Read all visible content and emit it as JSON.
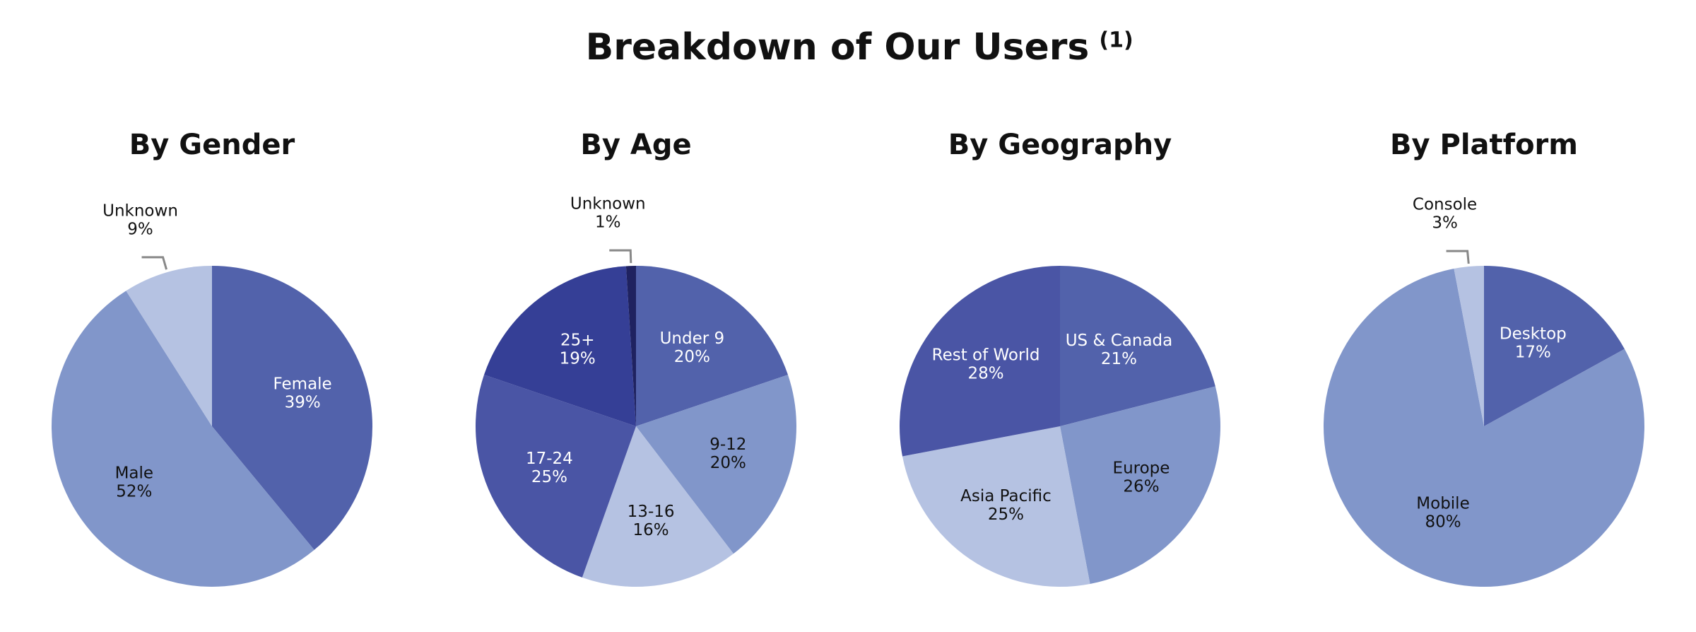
{
  "title": "Breakdown of Our Users",
  "title_note": "(1)",
  "chart_data": [
    {
      "type": "pie",
      "title": "By Gender",
      "categories": [
        "Female",
        "Male",
        "Unknown"
      ],
      "values": [
        39,
        52,
        9
      ],
      "value_labels": [
        "39%",
        "52%",
        "9%"
      ],
      "colors": [
        "#5262ab",
        "#8196ca",
        "#b5c2e2"
      ]
    },
    {
      "type": "pie",
      "title": "By Age",
      "categories": [
        "Under 9",
        "9-12",
        "13-16",
        "17-24",
        "25+",
        "Unknown"
      ],
      "values": [
        20,
        20,
        16,
        25,
        19,
        1
      ],
      "value_labels": [
        "20%",
        "20%",
        "16%",
        "25%",
        "19%",
        "1%"
      ],
      "colors": [
        "#5262ab",
        "#8196ca",
        "#b5c2e2",
        "#4a55a5",
        "#353f96",
        "#1f2260"
      ]
    },
    {
      "type": "pie",
      "title": "By Geography",
      "categories": [
        "US & Canada",
        "Europe",
        "Asia Pacific",
        "Rest of World"
      ],
      "values": [
        21,
        26,
        25,
        28
      ],
      "value_labels": [
        "21%",
        "26%",
        "25%",
        "28%"
      ],
      "colors": [
        "#5262ab",
        "#8196ca",
        "#b5c2e2",
        "#4a55a5"
      ]
    },
    {
      "type": "pie",
      "title": "By Platform",
      "categories": [
        "Desktop",
        "Mobile",
        "Console"
      ],
      "values": [
        17,
        80,
        3
      ],
      "value_labels": [
        "17%",
        "80%",
        "3%"
      ],
      "colors": [
        "#5262ab",
        "#8196ca",
        "#b5c2e2"
      ]
    }
  ]
}
